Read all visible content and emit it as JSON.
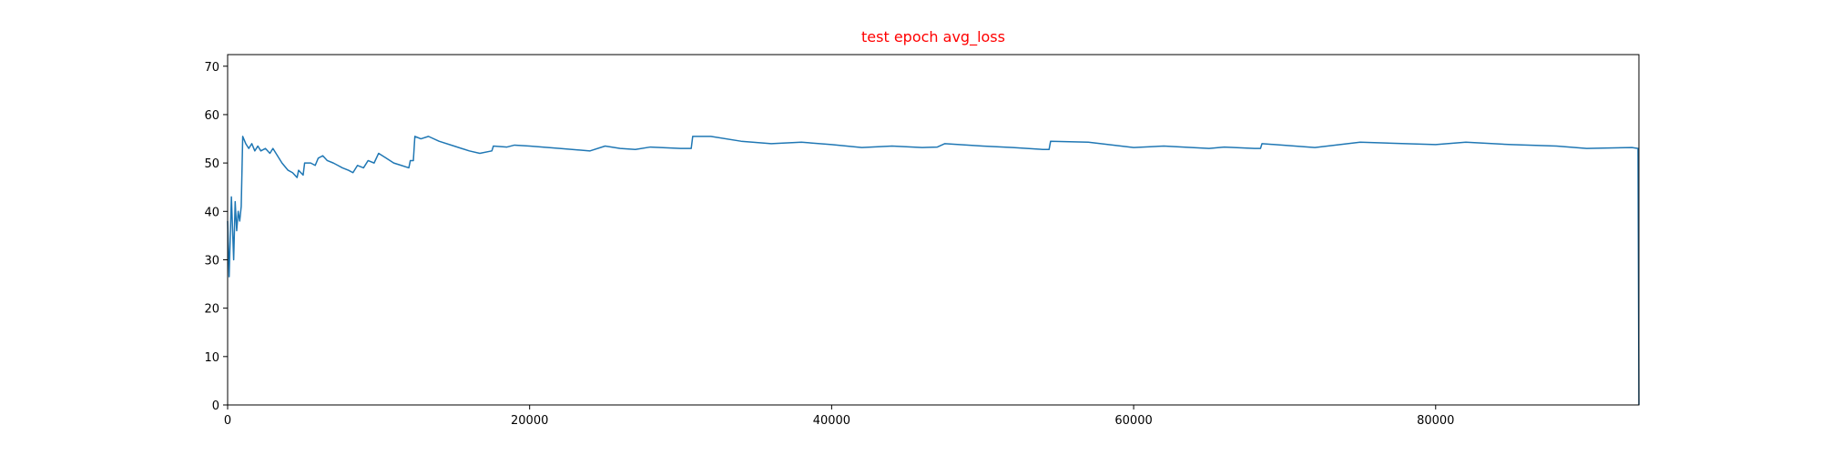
{
  "chart_data": {
    "type": "line",
    "title": "test epoch avg_loss",
    "title_color": "#ff0000",
    "color": "#1f77b4",
    "x": [
      0,
      100,
      250,
      400,
      500,
      600,
      700,
      800,
      900,
      1000,
      1200,
      1400,
      1600,
      1800,
      2000,
      2200,
      2500,
      2800,
      3000,
      3300,
      3600,
      4000,
      4300,
      4600,
      4700,
      5000,
      5100,
      5500,
      5800,
      6000,
      6300,
      6600,
      7000,
      7300,
      7600,
      8000,
      8300,
      8600,
      9000,
      9300,
      9700,
      10000,
      10500,
      11000,
      11500,
      12000,
      12100,
      12300,
      12400,
      12800,
      13300,
      14000,
      15000,
      16000,
      16700,
      17500,
      17600,
      18500,
      19000,
      20000,
      22000,
      24000,
      25000,
      26000,
      27000,
      28000,
      30000,
      30700,
      30800,
      32000,
      34000,
      36000,
      38000,
      40000,
      42000,
      44000,
      46000,
      47000,
      47500,
      50000,
      52000,
      54000,
      54400,
      54500,
      57000,
      60000,
      62000,
      65000,
      66000,
      68000,
      68400,
      68500,
      72000,
      75000,
      78000,
      80000,
      82000,
      85000,
      88000,
      90000,
      93000,
      93400,
      93460
    ],
    "values": [
      38,
      26.5,
      43,
      30,
      42,
      36,
      40,
      38,
      41,
      55.5,
      54,
      53,
      54,
      52.5,
      53.5,
      52.5,
      53,
      52,
      53,
      51.5,
      50,
      48.5,
      48,
      47,
      48.5,
      47.5,
      50,
      50,
      49.5,
      51,
      51.5,
      50.5,
      50,
      49.5,
      49,
      48.5,
      48,
      49.5,
      49,
      50.5,
      50,
      52,
      51,
      50,
      49.5,
      49,
      50.5,
      50.5,
      55.5,
      55,
      55.5,
      54.5,
      53.5,
      52.5,
      52,
      52.5,
      53.5,
      53.3,
      53.7,
      53.5,
      53,
      52.5,
      53.5,
      53,
      52.8,
      53.3,
      53,
      53,
      55.5,
      55.5,
      54.5,
      54,
      54.3,
      53.8,
      53.2,
      53.5,
      53.2,
      53.3,
      54,
      53.5,
      53.2,
      52.8,
      52.8,
      54.5,
      54.3,
      53.2,
      53.5,
      53,
      53.3,
      53,
      53,
      54,
      53.2,
      54.3,
      54,
      53.8,
      54.3,
      53.8,
      53.5,
      53,
      53.2,
      53,
      0
    ],
    "xlim": [
      0,
      93460
    ],
    "ylim": [
      0,
      72.4
    ],
    "xticks": [
      0,
      20000,
      40000,
      60000,
      80000
    ],
    "yticks": [
      0,
      10,
      20,
      30,
      40,
      50,
      60,
      70
    ]
  }
}
